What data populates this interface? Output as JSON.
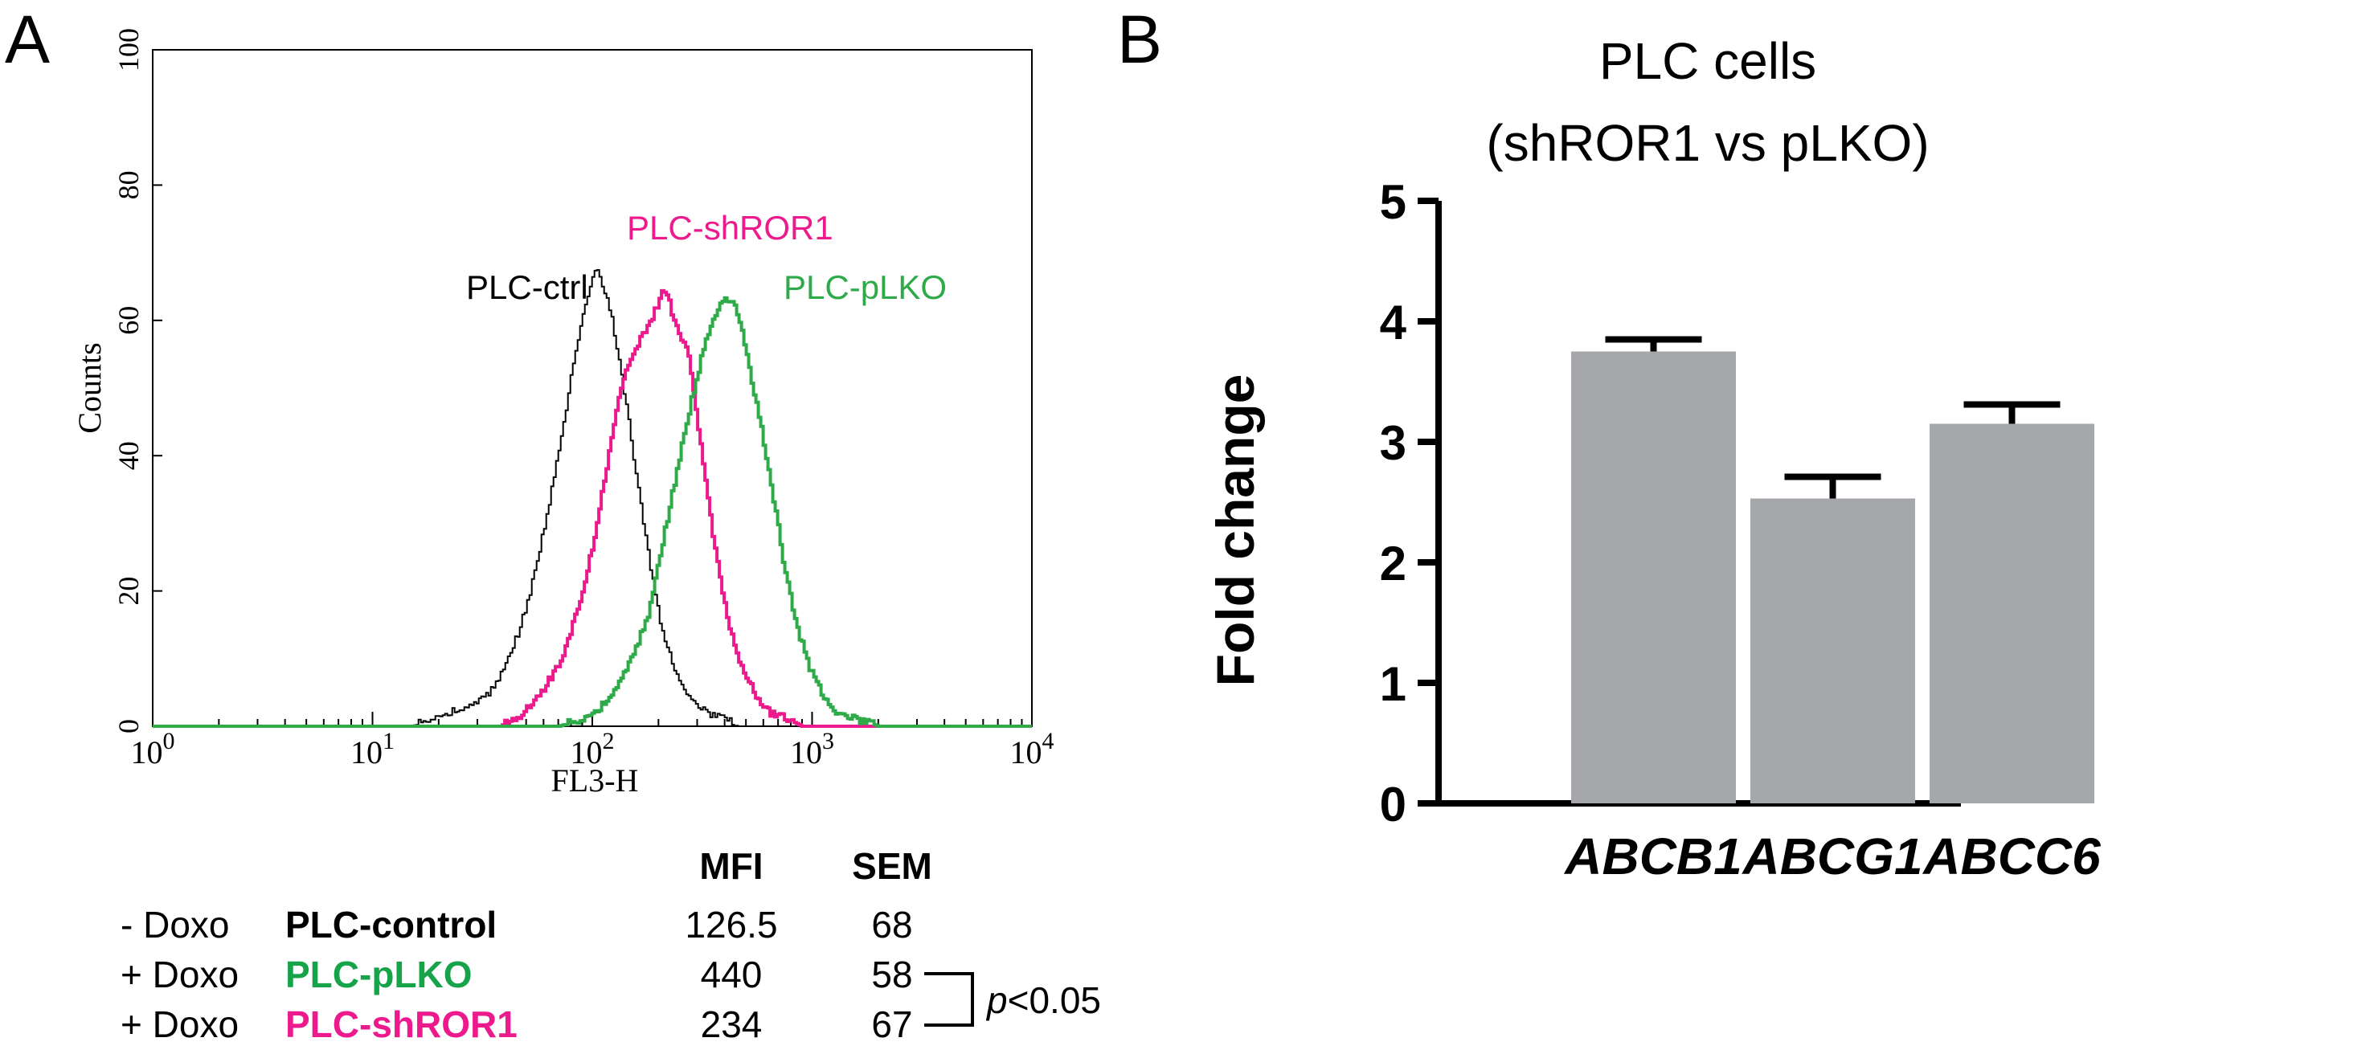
{
  "panels": {
    "a_label": "A",
    "b_label": "B"
  },
  "colors": {
    "ctrl": "#000000",
    "shror1": "#ec1a8c",
    "plko": "#2eab48",
    "bar": "#a6a7aa",
    "plko_text": "#16a34a",
    "shror1_text": "#ec1a8c"
  },
  "chart_data": [
    {
      "type": "line",
      "subtype": "flow-cytometry-histogram",
      "xlabel": "FL3-H",
      "ylabel": "Counts",
      "xscale": "log",
      "xlim": [
        1,
        10000
      ],
      "ylim": [
        0,
        100
      ],
      "x_tick_labels": [
        {
          "base": "10",
          "exp": "0"
        },
        {
          "base": "10",
          "exp": "1"
        },
        {
          "base": "10",
          "exp": "2"
        },
        {
          "base": "10",
          "exp": "3"
        },
        {
          "base": "10",
          "exp": "4"
        }
      ],
      "y_ticks": [
        "0",
        "20",
        "40",
        "60",
        "80",
        "100"
      ],
      "series": [
        {
          "name": "PLC-ctrl",
          "color": "#000000",
          "points": [
            [
              15,
              0
            ],
            [
              18,
              1
            ],
            [
              22,
              2
            ],
            [
              28,
              3
            ],
            [
              34,
              5
            ],
            [
              40,
              9
            ],
            [
              46,
              14
            ],
            [
              52,
              20
            ],
            [
              58,
              27
            ],
            [
              65,
              35
            ],
            [
              72,
              43
            ],
            [
              80,
              52
            ],
            [
              88,
              59
            ],
            [
              96,
              64
            ],
            [
              103,
              68
            ],
            [
              112,
              65
            ],
            [
              122,
              60
            ],
            [
              135,
              52
            ],
            [
              150,
              42
            ],
            [
              168,
              31
            ],
            [
              188,
              21
            ],
            [
              210,
              13
            ],
            [
              240,
              8
            ],
            [
              280,
              4
            ],
            [
              330,
              2
            ],
            [
              400,
              1
            ],
            [
              460,
              0
            ]
          ]
        },
        {
          "name": "PLC-shROR1",
          "color": "#ec1a8c",
          "points": [
            [
              38,
              0
            ],
            [
              48,
              2
            ],
            [
              58,
              5
            ],
            [
              70,
              9
            ],
            [
              85,
              17
            ],
            [
              100,
              27
            ],
            [
              115,
              38
            ],
            [
              130,
              48
            ],
            [
              150,
              55
            ],
            [
              170,
              58
            ],
            [
              190,
              61
            ],
            [
              210,
              65
            ],
            [
              225,
              62
            ],
            [
              245,
              58
            ],
            [
              268,
              56
            ],
            [
              290,
              48
            ],
            [
              320,
              38
            ],
            [
              360,
              26
            ],
            [
              410,
              16
            ],
            [
              470,
              9
            ],
            [
              540,
              5
            ],
            [
              640,
              2
            ],
            [
              780,
              1
            ],
            [
              900,
              0
            ]
          ]
        },
        {
          "name": "PLC-pLKO",
          "color": "#2eab48",
          "points": [
            [
              70,
              0
            ],
            [
              90,
              1
            ],
            [
              110,
              3
            ],
            [
              130,
              6
            ],
            [
              155,
              11
            ],
            [
              180,
              17
            ],
            [
              210,
              28
            ],
            [
              245,
              39
            ],
            [
              280,
              48
            ],
            [
              320,
              56
            ],
            [
              360,
              61
            ],
            [
              400,
              63
            ],
            [
              440,
              62
            ],
            [
              480,
              58
            ],
            [
              530,
              51
            ],
            [
              590,
              43
            ],
            [
              660,
              34
            ],
            [
              740,
              24
            ],
            [
              840,
              15
            ],
            [
              960,
              9
            ],
            [
              1100,
              5
            ],
            [
              1300,
              2
            ],
            [
              1600,
              1
            ],
            [
              2000,
              0
            ]
          ]
        }
      ],
      "curve_labels": [
        "PLC-ctrl",
        "PLC-shROR1",
        "PLC-pLKO"
      ]
    },
    {
      "type": "bar",
      "title": "PLC cells",
      "subtitle": "(shROR1 vs pLKO)",
      "ylabel": "Fold change",
      "ylim": [
        0,
        5
      ],
      "y_ticks": [
        "0",
        "1",
        "2",
        "3",
        "4",
        "5"
      ],
      "categories": [
        "ABCB1",
        "ABCG1",
        "ABCC6"
      ],
      "values": [
        3.75,
        2.53,
        3.15
      ],
      "errors": [
        0.1,
        0.18,
        0.16
      ]
    }
  ],
  "mfi_table": {
    "headers": {
      "mfi": "MFI",
      "sem": "SEM"
    },
    "rows": [
      {
        "treatment": "- Doxo",
        "sample": "PLC-control",
        "mfi": "126.5",
        "sem": "68",
        "color": "#000000"
      },
      {
        "treatment": "+ Doxo",
        "sample": "PLC-pLKO",
        "mfi": "440",
        "sem": "58",
        "color": "#16a34a"
      },
      {
        "treatment": "+ Doxo",
        "sample": "PLC-shROR1",
        "mfi": "234",
        "sem": "67",
        "color": "#ec1a8c"
      }
    ],
    "pvalue": {
      "symbol": "p",
      "rest": "<0.05"
    }
  }
}
